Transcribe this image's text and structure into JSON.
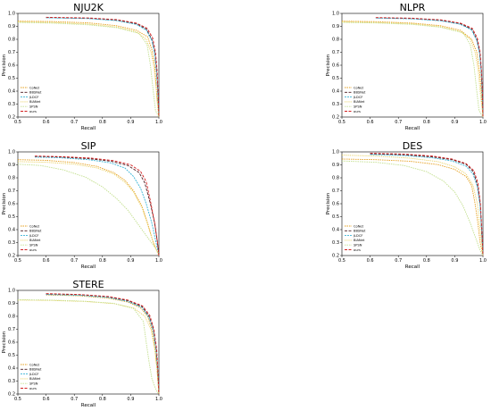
{
  "colors": {
    "CoNet": "#e6a020",
    "BBSNet": "#4a1c20",
    "JLDCF": "#3ab4d6",
    "BiANet": "#e8d060",
    "SPSN": "#c4e090",
    "ours": "#d21f1f"
  },
  "chart_data": [
    {
      "type": "line",
      "title": "NJU2K",
      "xlabel": "Recall",
      "ylabel": "Precision",
      "xlim": [
        0.5,
        1.0
      ],
      "ylim": [
        0.2,
        1.0
      ],
      "xticks": [
        "0.5",
        "0.6",
        "0.7",
        "0.8",
        "0.9",
        "1.0"
      ],
      "yticks": [
        "0.2",
        "0.3",
        "0.4",
        "0.5",
        "0.6",
        "0.7",
        "0.8",
        "0.9",
        "1.0"
      ],
      "legend_loc": "lower-left",
      "legend": [
        "CoNet",
        "BBSNet",
        "JLDCF",
        "BiANet",
        "SPSN",
        "ours"
      ],
      "series": [
        {
          "name": "CoNet",
          "color": "#e6a020",
          "dash": "1.5,1",
          "x": [
            0.5,
            0.62,
            0.75,
            0.85,
            0.92,
            0.96,
            0.975,
            0.985,
            0.99,
            0.995,
            1.0
          ],
          "y": [
            0.94,
            0.937,
            0.927,
            0.905,
            0.87,
            0.82,
            0.72,
            0.6,
            0.45,
            0.3,
            0.2
          ]
        },
        {
          "name": "BBSNet",
          "color": "#4a1c20",
          "dash": "3,1.5",
          "x": [
            0.6,
            0.75,
            0.85,
            0.92,
            0.955,
            0.975,
            0.985,
            0.992,
            0.996,
            1.0
          ],
          "y": [
            0.968,
            0.962,
            0.948,
            0.92,
            0.88,
            0.8,
            0.7,
            0.55,
            0.4,
            0.2
          ]
        },
        {
          "name": "JLDCF",
          "color": "#3ab4d6",
          "dash": "2,1",
          "x": [
            0.6,
            0.75,
            0.85,
            0.92,
            0.955,
            0.975,
            0.985,
            0.992,
            0.996,
            1.0
          ],
          "y": [
            0.966,
            0.96,
            0.944,
            0.915,
            0.872,
            0.79,
            0.69,
            0.54,
            0.39,
            0.2
          ]
        },
        {
          "name": "BiANet",
          "color": "#e8d060",
          "dash": "1.2,1",
          "x": [
            0.5,
            0.62,
            0.75,
            0.85,
            0.92,
            0.955,
            0.972,
            0.983,
            0.99,
            0.995,
            1.0
          ],
          "y": [
            0.935,
            0.93,
            0.918,
            0.895,
            0.858,
            0.8,
            0.7,
            0.58,
            0.43,
            0.3,
            0.2
          ]
        },
        {
          "name": "SPSN",
          "color": "#c4e090",
          "dash": "1.5,1",
          "x": [
            0.5,
            0.62,
            0.75,
            0.85,
            0.93,
            0.958,
            0.97,
            0.98,
            0.988,
            1.0
          ],
          "y": [
            0.93,
            0.925,
            0.912,
            0.89,
            0.845,
            0.76,
            0.6,
            0.4,
            0.25,
            0.2
          ]
        },
        {
          "name": "ours",
          "color": "#d21f1f",
          "dash": "3,1.5",
          "x": [
            0.6,
            0.75,
            0.85,
            0.92,
            0.958,
            0.978,
            0.988,
            0.994,
            0.997,
            1.0
          ],
          "y": [
            0.97,
            0.965,
            0.952,
            0.925,
            0.885,
            0.81,
            0.7,
            0.55,
            0.4,
            0.2
          ]
        }
      ]
    },
    {
      "type": "line",
      "title": "NLPR",
      "xlabel": "Recall",
      "ylabel": "Precision",
      "xlim": [
        0.5,
        1.0
      ],
      "ylim": [
        0.2,
        1.0
      ],
      "xticks": [
        "0.5",
        "0.6",
        "0.7",
        "0.8",
        "0.9",
        "1.0"
      ],
      "yticks": [
        "0.2",
        "0.3",
        "0.4",
        "0.5",
        "0.6",
        "0.7",
        "0.8",
        "0.9",
        "1.0"
      ],
      "legend_loc": "lower-left",
      "legend": [
        "CoNet",
        "BBSNet",
        "JLDCF",
        "BiANet",
        "SPSN",
        "ours"
      ],
      "series": [
        {
          "name": "CoNet",
          "color": "#e6a020",
          "dash": "1.5,1",
          "x": [
            0.5,
            0.62,
            0.75,
            0.85,
            0.92,
            0.96,
            0.978,
            0.988,
            0.994,
            1.0
          ],
          "y": [
            0.94,
            0.936,
            0.925,
            0.905,
            0.87,
            0.8,
            0.7,
            0.55,
            0.4,
            0.2
          ]
        },
        {
          "name": "BBSNet",
          "color": "#4a1c20",
          "dash": "3,1.5",
          "x": [
            0.62,
            0.75,
            0.85,
            0.92,
            0.96,
            0.978,
            0.988,
            0.994,
            0.997,
            1.0
          ],
          "y": [
            0.966,
            0.96,
            0.946,
            0.92,
            0.878,
            0.8,
            0.7,
            0.55,
            0.4,
            0.2
          ]
        },
        {
          "name": "JLDCF",
          "color": "#3ab4d6",
          "dash": "2,1",
          "x": [
            0.62,
            0.75,
            0.85,
            0.92,
            0.96,
            0.978,
            0.988,
            0.994,
            0.997,
            1.0
          ],
          "y": [
            0.964,
            0.958,
            0.943,
            0.916,
            0.872,
            0.79,
            0.69,
            0.54,
            0.39,
            0.2
          ]
        },
        {
          "name": "BiANet",
          "color": "#e8d060",
          "dash": "1.2,1",
          "x": [
            0.5,
            0.62,
            0.75,
            0.85,
            0.92,
            0.955,
            0.972,
            0.983,
            0.99,
            1.0
          ],
          "y": [
            0.935,
            0.93,
            0.92,
            0.897,
            0.86,
            0.8,
            0.7,
            0.56,
            0.4,
            0.2
          ]
        },
        {
          "name": "SPSN",
          "color": "#c4e090",
          "dash": "1.5,1",
          "x": [
            0.5,
            0.62,
            0.75,
            0.85,
            0.93,
            0.955,
            0.968,
            0.978,
            0.986,
            1.0
          ],
          "y": [
            0.93,
            0.926,
            0.915,
            0.893,
            0.85,
            0.76,
            0.6,
            0.4,
            0.25,
            0.2
          ]
        },
        {
          "name": "ours",
          "color": "#d21f1f",
          "dash": "3,1.5",
          "x": [
            0.62,
            0.75,
            0.85,
            0.92,
            0.962,
            0.98,
            0.99,
            0.995,
            0.998,
            1.0
          ],
          "y": [
            0.968,
            0.963,
            0.95,
            0.925,
            0.885,
            0.81,
            0.7,
            0.55,
            0.4,
            0.2
          ]
        }
      ]
    },
    {
      "type": "line",
      "title": "SIP",
      "xlabel": "Recall",
      "ylabel": "Precision",
      "xlim": [
        0.5,
        1.0
      ],
      "ylim": [
        0.2,
        1.0
      ],
      "xticks": [
        "0.5",
        "0.6",
        "0.7",
        "0.8",
        "0.9",
        "1.0"
      ],
      "yticks": [
        "0.2",
        "0.3",
        "0.4",
        "0.5",
        "0.6",
        "0.7",
        "0.8",
        "0.9",
        "1.0"
      ],
      "legend_loc": "lower-left",
      "legend": [
        "CoNet",
        "BBSNet",
        "JLDCF",
        "BiANet",
        "SPSN",
        "ours"
      ],
      "series": [
        {
          "name": "CoNet",
          "color": "#e6a020",
          "dash": "1.5,1",
          "x": [
            0.5,
            0.6,
            0.7,
            0.78,
            0.84,
            0.88,
            0.91,
            0.94,
            0.96,
            0.98,
            1.0
          ],
          "y": [
            0.94,
            0.935,
            0.918,
            0.888,
            0.84,
            0.78,
            0.7,
            0.58,
            0.45,
            0.3,
            0.2
          ]
        },
        {
          "name": "BBSNet",
          "color": "#4a1c20",
          "dash": "3,1.5",
          "x": [
            0.56,
            0.65,
            0.75,
            0.83,
            0.89,
            0.93,
            0.95,
            0.97,
            0.985,
            0.995,
            1.0
          ],
          "y": [
            0.965,
            0.96,
            0.948,
            0.928,
            0.895,
            0.84,
            0.76,
            0.6,
            0.45,
            0.3,
            0.2
          ]
        },
        {
          "name": "JLDCF",
          "color": "#3ab4d6",
          "dash": "2,1",
          "x": [
            0.56,
            0.65,
            0.75,
            0.83,
            0.88,
            0.91,
            0.935,
            0.955,
            0.975,
            0.99,
            1.0
          ],
          "y": [
            0.96,
            0.955,
            0.94,
            0.915,
            0.875,
            0.81,
            0.72,
            0.6,
            0.45,
            0.3,
            0.2
          ]
        },
        {
          "name": "BiANet",
          "color": "#e8d060",
          "dash": "1.2,1",
          "x": [
            0.5,
            0.6,
            0.7,
            0.78,
            0.84,
            0.88,
            0.91,
            0.94,
            0.96,
            0.98,
            1.0
          ],
          "y": [
            0.925,
            0.92,
            0.905,
            0.876,
            0.83,
            0.765,
            0.69,
            0.57,
            0.44,
            0.3,
            0.2
          ]
        },
        {
          "name": "SPSN",
          "color": "#c4e090",
          "dash": "1.5,1",
          "x": [
            0.5,
            0.58,
            0.66,
            0.74,
            0.8,
            0.85,
            0.89,
            0.92,
            0.95,
            0.98,
            1.0
          ],
          "y": [
            0.905,
            0.895,
            0.862,
            0.805,
            0.73,
            0.64,
            0.55,
            0.46,
            0.37,
            0.28,
            0.22
          ]
        },
        {
          "name": "ours",
          "color": "#d21f1f",
          "dash": "3,1.5",
          "x": [
            0.56,
            0.66,
            0.76,
            0.84,
            0.9,
            0.935,
            0.955,
            0.97,
            0.985,
            0.995,
            1.0
          ],
          "y": [
            0.968,
            0.963,
            0.952,
            0.932,
            0.9,
            0.85,
            0.77,
            0.62,
            0.45,
            0.3,
            0.2
          ]
        }
      ]
    },
    {
      "type": "line",
      "title": "DES",
      "xlabel": "Recall",
      "ylabel": "Precision",
      "xlim": [
        0.5,
        1.0
      ],
      "ylim": [
        0.2,
        1.0
      ],
      "xticks": [
        "0.5",
        "0.6",
        "0.7",
        "0.8",
        "0.9",
        "1.0"
      ],
      "yticks": [
        "0.2",
        "0.3",
        "0.4",
        "0.5",
        "0.6",
        "0.7",
        "0.8",
        "0.9",
        "1.0"
      ],
      "legend_loc": "lower-left",
      "legend": [
        "CoNet",
        "BBSNet",
        "JLDCF",
        "BiANet",
        "SPSN",
        "ours"
      ],
      "series": [
        {
          "name": "CoNet",
          "color": "#e6a020",
          "dash": "1.5,1",
          "x": [
            0.5,
            0.62,
            0.74,
            0.84,
            0.9,
            0.94,
            0.96,
            0.972,
            0.982,
            0.99,
            1.0
          ],
          "y": [
            0.945,
            0.94,
            0.928,
            0.902,
            0.865,
            0.81,
            0.74,
            0.6,
            0.45,
            0.3,
            0.2
          ]
        },
        {
          "name": "BBSNet",
          "color": "#4a1c20",
          "dash": "3,1.5",
          "x": [
            0.6,
            0.72,
            0.82,
            0.89,
            0.94,
            0.965,
            0.98,
            0.99,
            0.995,
            1.0
          ],
          "y": [
            0.985,
            0.978,
            0.962,
            0.94,
            0.905,
            0.85,
            0.75,
            0.6,
            0.4,
            0.2
          ]
        },
        {
          "name": "JLDCF",
          "color": "#3ab4d6",
          "dash": "2,1",
          "x": [
            0.6,
            0.72,
            0.82,
            0.89,
            0.94,
            0.965,
            0.98,
            0.99,
            0.995,
            1.0
          ],
          "y": [
            0.98,
            0.972,
            0.955,
            0.93,
            0.89,
            0.83,
            0.73,
            0.58,
            0.4,
            0.2
          ]
        },
        {
          "name": "BiANet",
          "color": "#e8d060",
          "dash": "1.2,1",
          "x": [
            0.5,
            0.62,
            0.74,
            0.84,
            0.9,
            0.94,
            0.965,
            0.98,
            0.99,
            1.0
          ],
          "y": [
            0.975,
            0.968,
            0.952,
            0.925,
            0.885,
            0.83,
            0.74,
            0.6,
            0.4,
            0.2
          ]
        },
        {
          "name": "SPSN",
          "color": "#c4e090",
          "dash": "1.5,1",
          "x": [
            0.5,
            0.62,
            0.72,
            0.8,
            0.86,
            0.9,
            0.93,
            0.955,
            0.975,
            0.99,
            1.0
          ],
          "y": [
            0.93,
            0.92,
            0.895,
            0.848,
            0.775,
            0.69,
            0.58,
            0.45,
            0.33,
            0.24,
            0.2
          ]
        },
        {
          "name": "ours",
          "color": "#d21f1f",
          "dash": "3,1.5",
          "x": [
            0.6,
            0.72,
            0.82,
            0.89,
            0.94,
            0.968,
            0.982,
            0.991,
            0.996,
            1.0
          ],
          "y": [
            0.99,
            0.983,
            0.968,
            0.945,
            0.91,
            0.855,
            0.76,
            0.6,
            0.4,
            0.2
          ]
        }
      ]
    },
    {
      "type": "line",
      "title": "STERE",
      "xlabel": "Recall",
      "ylabel": "Precision",
      "xlim": [
        0.5,
        1.0
      ],
      "ylim": [
        0.2,
        1.0
      ],
      "xticks": [
        "0.5",
        "0.6",
        "0.7",
        "0.8",
        "0.9",
        "1.0"
      ],
      "yticks": [
        "0.2",
        "0.3",
        "0.4",
        "0.5",
        "0.6",
        "0.7",
        "0.8",
        "0.9",
        "1.0"
      ],
      "legend_loc": "lower-left",
      "legend": [
        "CoNet",
        "BBSNet",
        "JLDCF",
        "BiANet",
        "SPSN",
        "ours"
      ],
      "series": [
        {
          "name": "CoNet",
          "color": "#e6a020",
          "dash": "1.5,1",
          "x": [
            0.6,
            0.72,
            0.82,
            0.89,
            0.935,
            0.96,
            0.975,
            0.986,
            0.993,
            1.0
          ],
          "y": [
            0.965,
            0.958,
            0.94,
            0.91,
            0.865,
            0.8,
            0.7,
            0.55,
            0.4,
            0.2
          ]
        },
        {
          "name": "BBSNet",
          "color": "#4a1c20",
          "dash": "3,1.5",
          "x": [
            0.6,
            0.72,
            0.82,
            0.89,
            0.94,
            0.965,
            0.98,
            0.99,
            0.995,
            1.0
          ],
          "y": [
            0.972,
            0.966,
            0.95,
            0.92,
            0.875,
            0.8,
            0.7,
            0.55,
            0.4,
            0.2
          ]
        },
        {
          "name": "JLDCF",
          "color": "#3ab4d6",
          "dash": "2,1",
          "x": [
            0.6,
            0.72,
            0.82,
            0.89,
            0.94,
            0.965,
            0.98,
            0.99,
            0.995,
            1.0
          ],
          "y": [
            0.968,
            0.962,
            0.945,
            0.915,
            0.868,
            0.79,
            0.69,
            0.54,
            0.39,
            0.2
          ]
        },
        {
          "name": "BiANet",
          "color": "#e8d060",
          "dash": "1.2,1",
          "x": [
            0.5,
            0.62,
            0.74,
            0.84,
            0.91,
            0.95,
            0.972,
            0.985,
            0.993,
            1.0
          ],
          "y": [
            0.925,
            0.922,
            0.914,
            0.898,
            0.865,
            0.8,
            0.7,
            0.55,
            0.4,
            0.2
          ]
        },
        {
          "name": "SPSN",
          "color": "#c4e090",
          "dash": "1.5,1",
          "x": [
            0.5,
            0.62,
            0.74,
            0.84,
            0.91,
            0.945,
            0.955,
            0.965,
            0.975,
            0.99,
            1.0
          ],
          "y": [
            0.928,
            0.925,
            0.916,
            0.9,
            0.86,
            0.76,
            0.6,
            0.45,
            0.32,
            0.23,
            0.2
          ]
        },
        {
          "name": "ours",
          "color": "#d21f1f",
          "dash": "3,1.5",
          "x": [
            0.6,
            0.72,
            0.82,
            0.89,
            0.942,
            0.968,
            0.982,
            0.992,
            0.996,
            1.0
          ],
          "y": [
            0.975,
            0.968,
            0.953,
            0.925,
            0.88,
            0.805,
            0.7,
            0.55,
            0.4,
            0.2
          ]
        }
      ]
    }
  ]
}
